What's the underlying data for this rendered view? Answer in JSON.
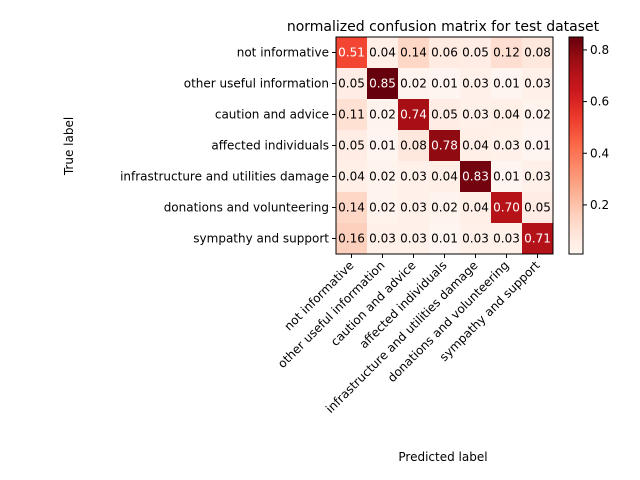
{
  "chart_data": {
    "type": "heatmap",
    "title": "normalized confusion matrix for test dataset",
    "xlabel": "Predicted label",
    "ylabel": "True label",
    "labels": [
      "not informative",
      "other useful information",
      "caution and advice",
      "affected individuals",
      "infrastructure and utilities damage",
      "donations and volunteering",
      "sympathy and support"
    ],
    "matrix": [
      [
        0.51,
        0.04,
        0.14,
        0.06,
        0.05,
        0.12,
        0.08
      ],
      [
        0.05,
        0.85,
        0.02,
        0.01,
        0.03,
        0.01,
        0.03
      ],
      [
        0.11,
        0.02,
        0.74,
        0.05,
        0.03,
        0.04,
        0.02
      ],
      [
        0.05,
        0.01,
        0.08,
        0.78,
        0.04,
        0.03,
        0.01
      ],
      [
        0.04,
        0.02,
        0.03,
        0.04,
        0.83,
        0.01,
        0.03
      ],
      [
        0.14,
        0.02,
        0.03,
        0.02,
        0.04,
        0.7,
        0.05
      ],
      [
        0.16,
        0.03,
        0.03,
        0.01,
        0.03,
        0.03,
        0.71
      ]
    ],
    "colormap": "Reds",
    "colorbar": {
      "min": 0.01,
      "max": 0.85,
      "ticks": [
        0.2,
        0.4,
        0.6,
        0.8
      ],
      "tick_labels": [
        "0.2",
        "0.4",
        "0.6",
        "0.8"
      ]
    },
    "grid": false
  }
}
